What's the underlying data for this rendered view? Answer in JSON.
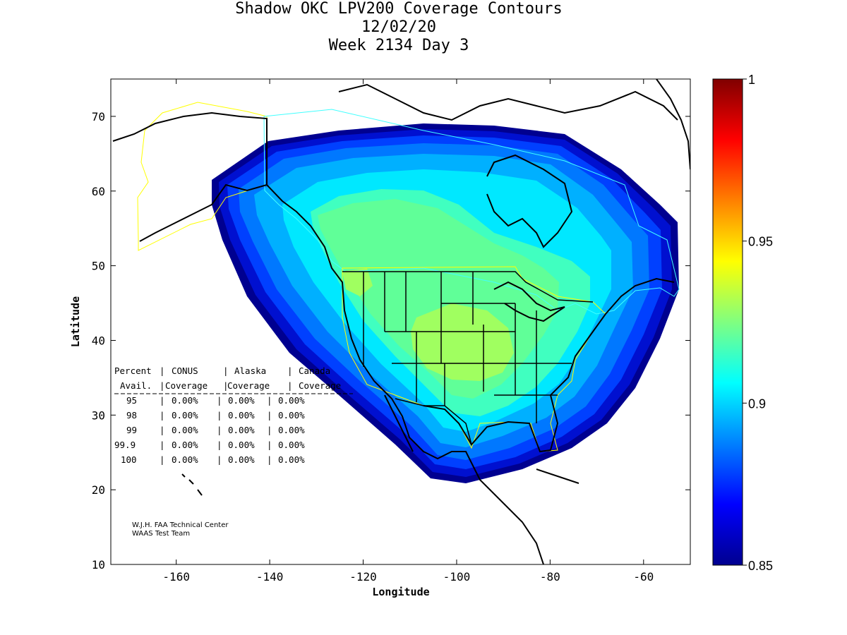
{
  "title": {
    "line1": "Shadow OKC LPV200 Coverage Contours",
    "line2": "12/02/20",
    "line3": "Week 2134 Day 3"
  },
  "axes": {
    "xlabel": "Longitude",
    "ylabel": "Latitude",
    "xlim": [
      -174,
      -50
    ],
    "ylim": [
      10,
      75
    ],
    "xticks": [
      -160,
      -140,
      -120,
      -100,
      -80,
      -60
    ],
    "yticks": [
      10,
      20,
      30,
      40,
      50,
      60,
      70
    ]
  },
  "colorbar": {
    "min": 0.85,
    "max": 1,
    "ticks": [
      {
        "value": 1,
        "label": "1"
      },
      {
        "value": 0.95,
        "label": "0.95"
      },
      {
        "value": 0.9,
        "label": "0.9"
      },
      {
        "value": 0.85,
        "label": "0.85"
      }
    ],
    "colormap": [
      "#00008f",
      "#0000ff",
      "#0080ff",
      "#00ffff",
      "#80ff80",
      "#ffff00",
      "#ff8000",
      "#ff0000",
      "#800000"
    ]
  },
  "table": {
    "header1": [
      "Percent",
      "CONUS",
      "Alaska",
      "Canada"
    ],
    "header2": [
      "Avail.",
      "Coverage",
      "Coverage",
      "Coverage"
    ],
    "rows": [
      {
        "pct": "95",
        "conus": "0.00%",
        "alaska": "0.00%",
        "canada": "0.00%"
      },
      {
        "pct": "98",
        "conus": "0.00%",
        "alaska": "0.00%",
        "canada": "0.00%"
      },
      {
        "pct": "99",
        "conus": "0.00%",
        "alaska": "0.00%",
        "canada": "0.00%"
      },
      {
        "pct": "99.9",
        "conus": "0.00%",
        "alaska": "0.00%",
        "canada": "0.00%"
      },
      {
        "pct": "100",
        "conus": "0.00%",
        "alaska": "0.00%",
        "canada": "0.00%"
      }
    ]
  },
  "credit": {
    "line1": "W.J.H. FAA Technical Center",
    "line2": "WAAS Test Team"
  },
  "contours": [
    {
      "level": 0.85,
      "color": "#000090"
    },
    {
      "level": 0.86,
      "color": "#0010d0"
    },
    {
      "level": 0.87,
      "color": "#0040ff"
    },
    {
      "level": 0.88,
      "color": "#0078ff"
    },
    {
      "level": 0.89,
      "color": "#00b0ff"
    },
    {
      "level": 0.9,
      "color": "#00e8ff"
    },
    {
      "level": 0.91,
      "color": "#40ffc0"
    },
    {
      "level": 0.92,
      "color": "#60ff98"
    },
    {
      "level": 0.93,
      "color": "#a0ff60"
    }
  ]
}
